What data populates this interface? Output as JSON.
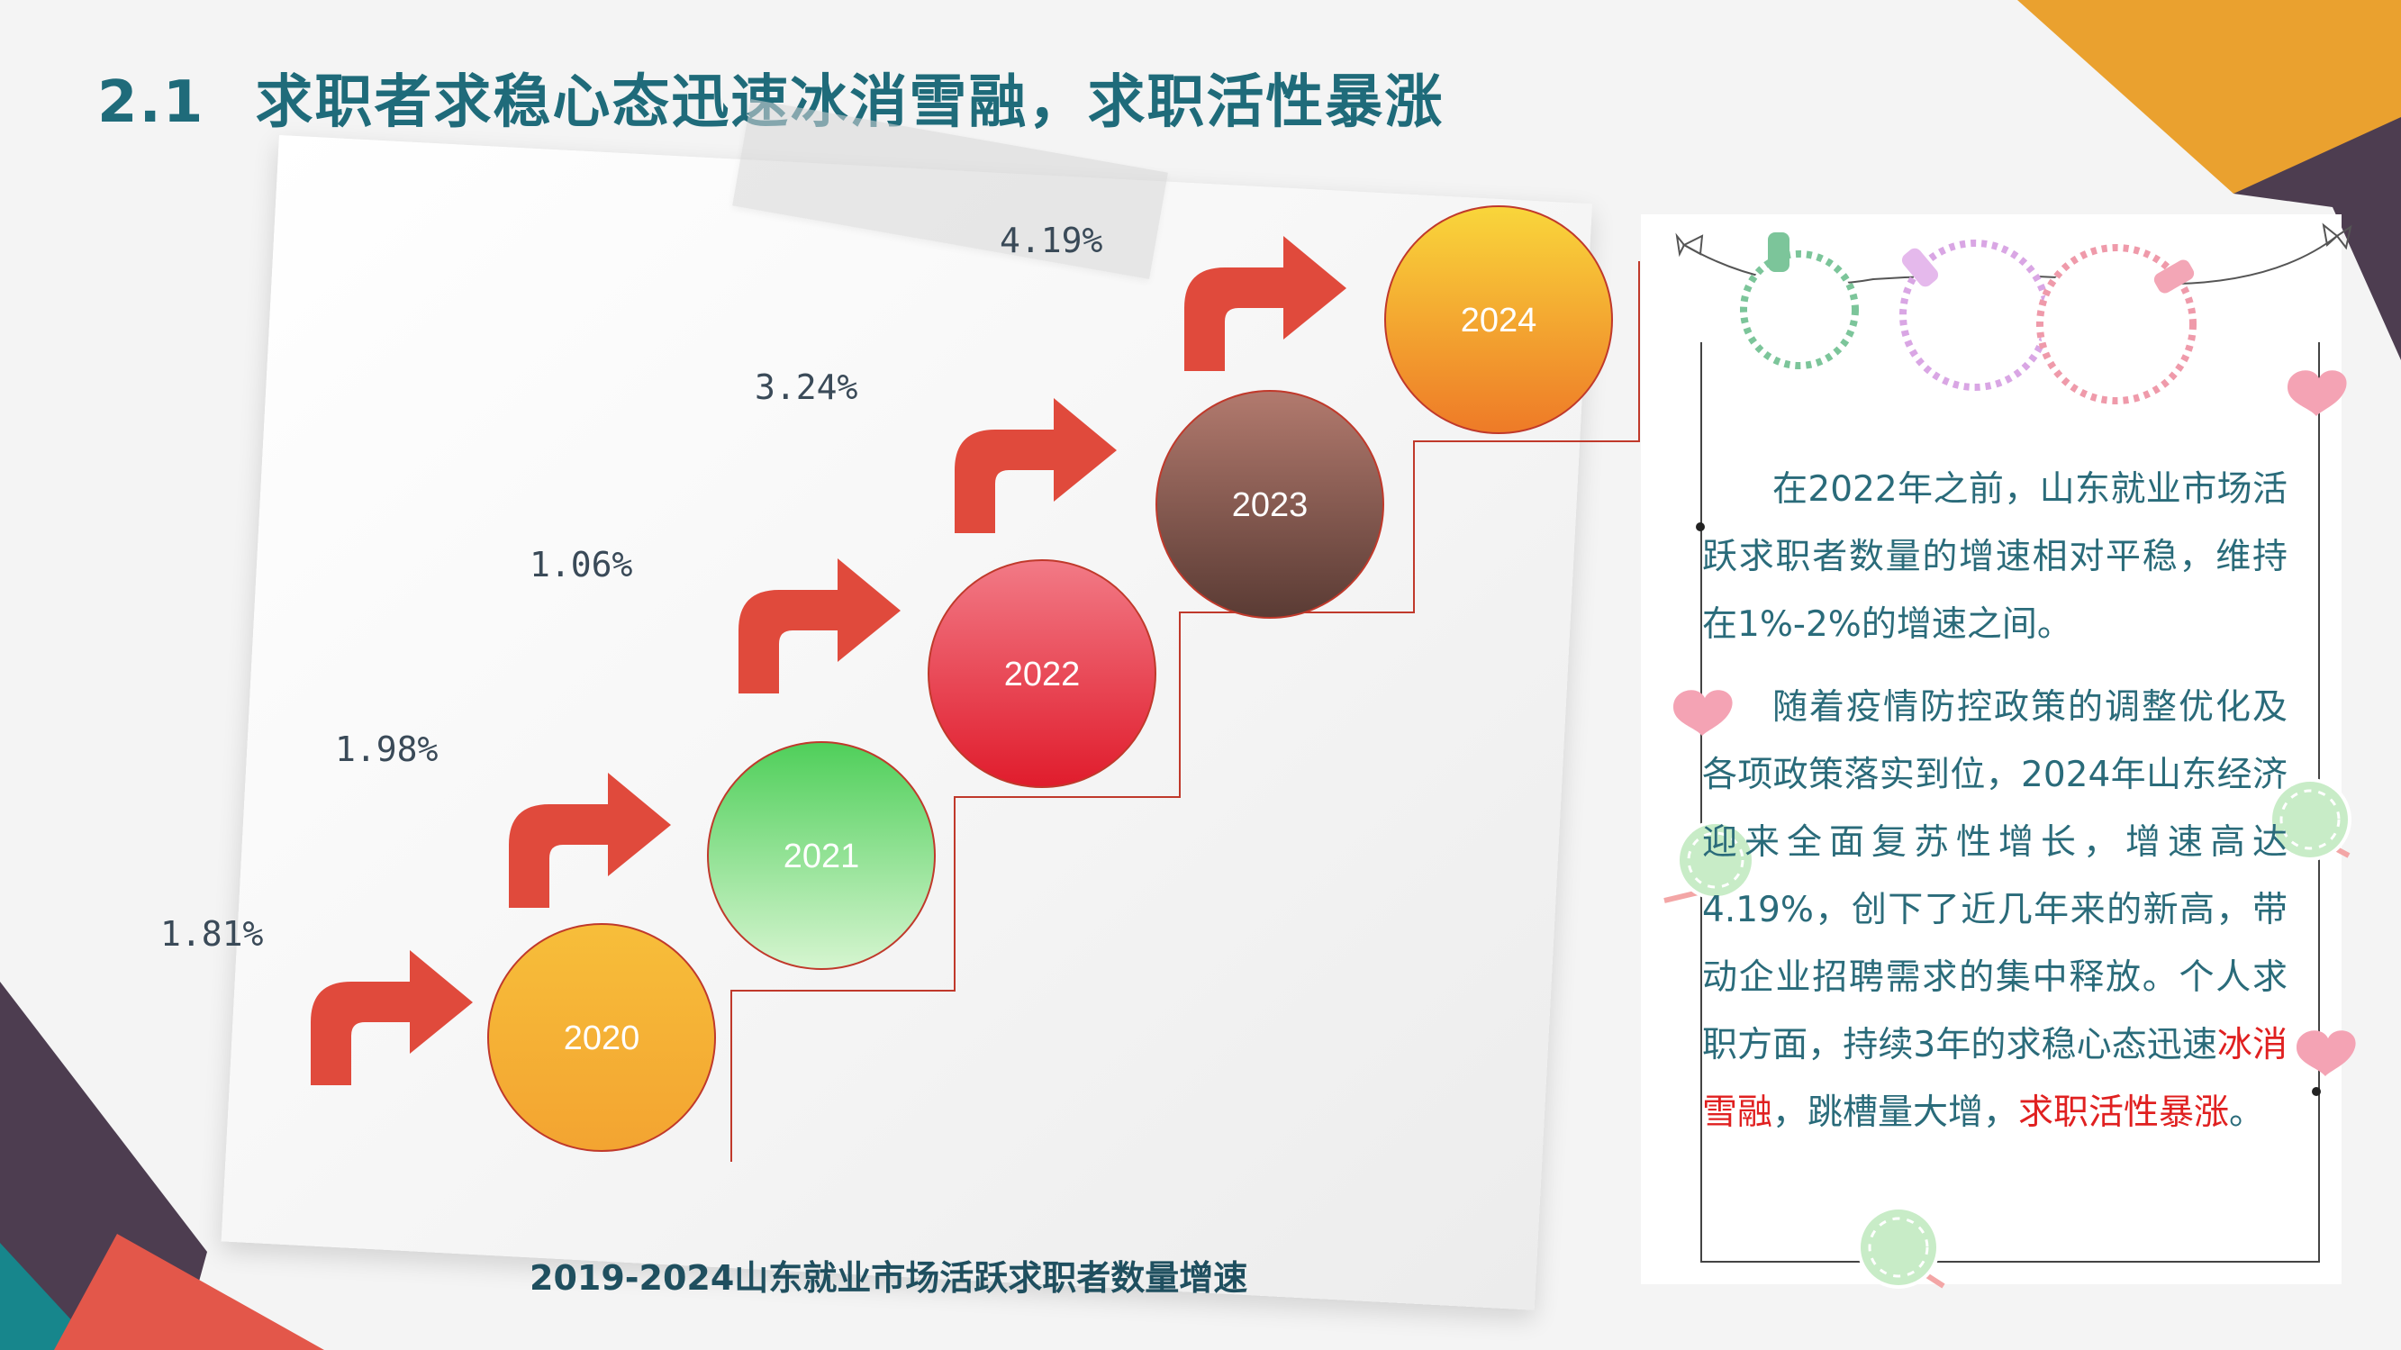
{
  "slide": {
    "title_number": "2.1",
    "title_text": "求职者求稳心态迅速冰消雪融，求职活性暴涨"
  },
  "colors": {
    "title": "#1f6b7a",
    "body_text": "#2a6b7a",
    "highlight": "#e02020",
    "arrow": "#e04a3c"
  },
  "chart_data": {
    "type": "bar",
    "title": "2019-2024山东就业市场活跃求职者数量增速",
    "categories": [
      "2020",
      "2021",
      "2022",
      "2023",
      "2024"
    ],
    "rate_labels": [
      "1.81%",
      "1.98%",
      "1.06%",
      "3.24%",
      "4.19%"
    ],
    "values": [
      1.81,
      1.98,
      1.06,
      3.24,
      4.19
    ],
    "unit": "%",
    "grid": false,
    "legend": "none"
  },
  "panel": {
    "paragraph1": "在2022年之前，山东就业市场活跃求职者数量的增速相对平稳，维持在1%-2%的增速之间。",
    "p2_a": "随着疫情防控政策的调整优化及各项政策落实到位，2024年山东经济迎来全面复苏性增长，增速高达4.19%，创下了近几年来的新高，带动企业招聘需求的集中释放。个人求职方面，持续3年的求稳心态迅速",
    "p2_hl1": "冰消雪融",
    "p2_b": "，跳槽量大增，",
    "p2_hl2": "求职活性暴涨",
    "p2_c": "。"
  }
}
